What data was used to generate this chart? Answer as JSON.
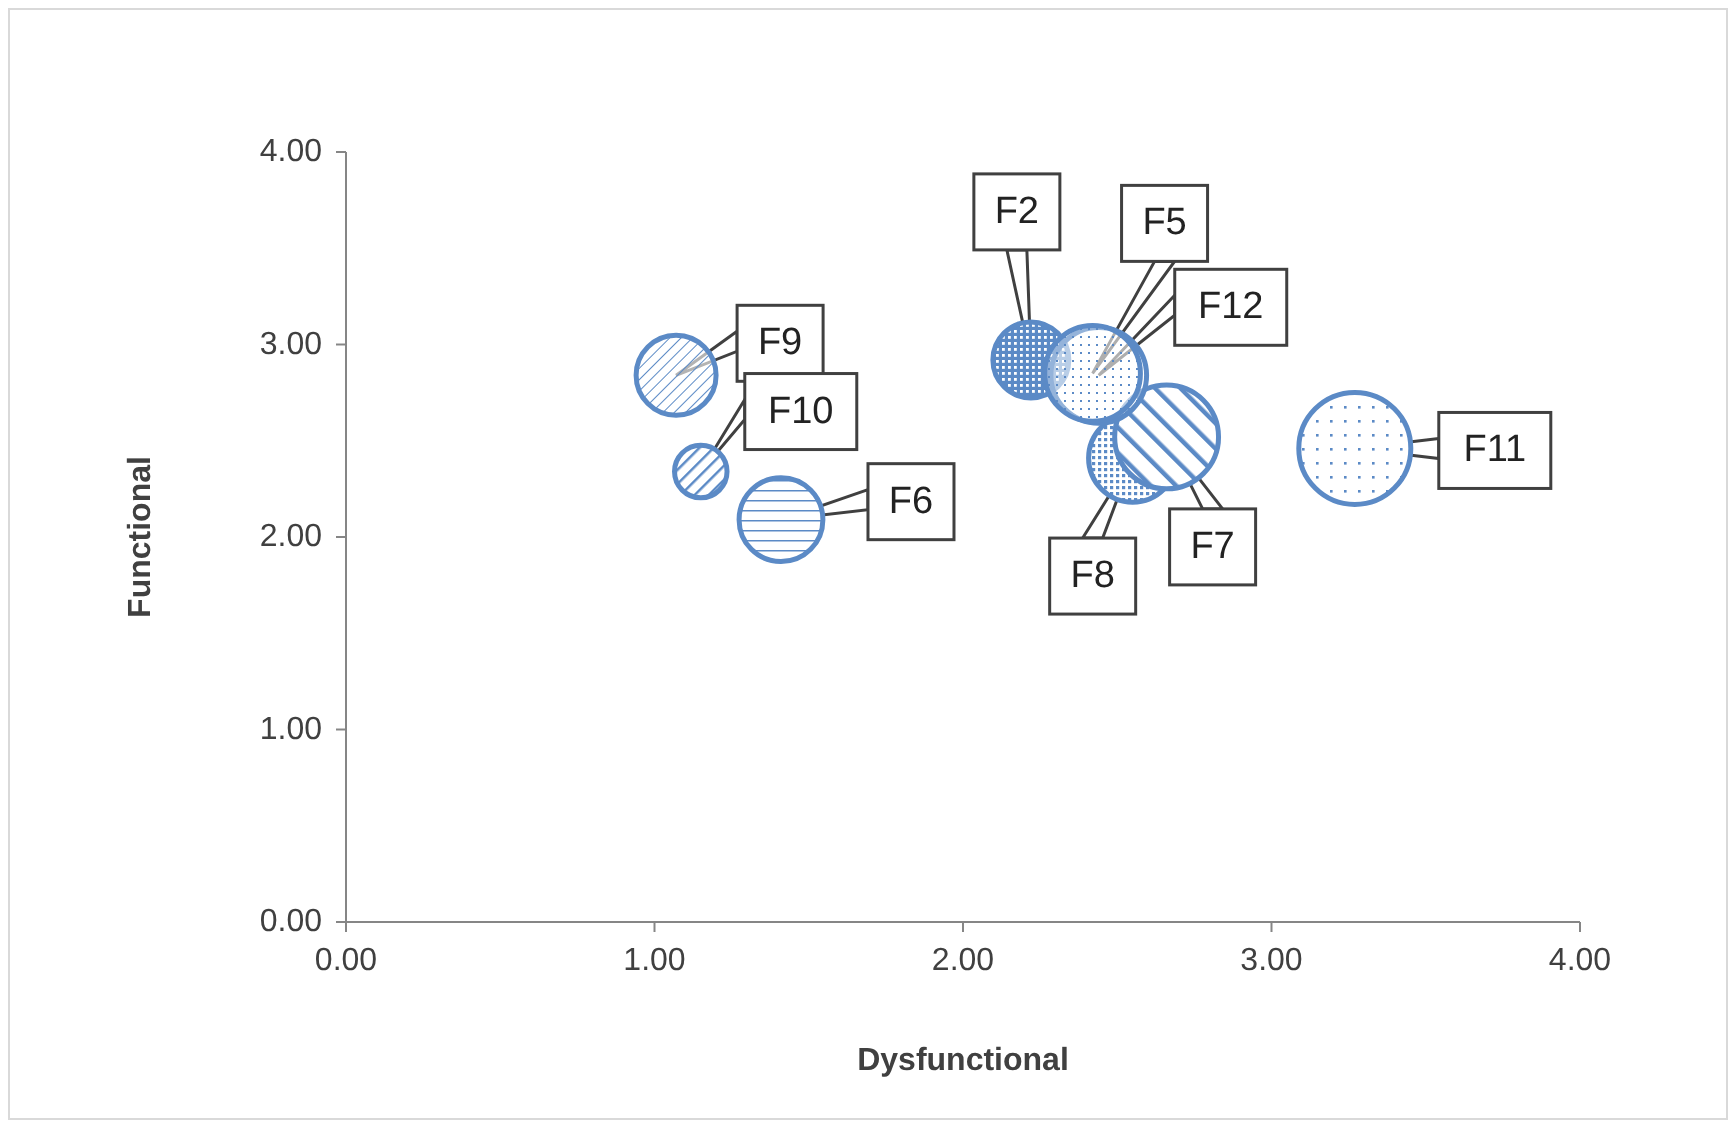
{
  "chart_data": {
    "type": "bubble",
    "xlabel": "Dysfunctional",
    "ylabel": "Functional",
    "xlim": [
      0,
      4
    ],
    "ylim": [
      0,
      4
    ],
    "xticks": [
      {
        "value": 0,
        "label": "0.00"
      },
      {
        "value": 1,
        "label": "1.00"
      },
      {
        "value": 2,
        "label": "2.00"
      },
      {
        "value": 3,
        "label": "3.00"
      },
      {
        "value": 4,
        "label": "4.00"
      }
    ],
    "yticks": [
      {
        "value": 0,
        "label": "0.00"
      },
      {
        "value": 1,
        "label": "1.00"
      },
      {
        "value": 2,
        "label": "2.00"
      },
      {
        "value": 3,
        "label": "3.00"
      },
      {
        "value": 4,
        "label": "4.00"
      }
    ],
    "grid": false,
    "legend": false,
    "series": [
      {
        "name": "F9",
        "color": "#5b8ac6",
        "x": [
          1.07
        ],
        "values": [
          2.84
        ],
        "sizes": [
          0.51
        ]
      },
      {
        "name": "F10",
        "color": "#5b8ac6",
        "x": [
          1.15
        ],
        "values": [
          2.34
        ],
        "sizes": [
          0.22
        ]
      },
      {
        "name": "F6",
        "color": "#5b8ac6",
        "x": [
          1.41
        ],
        "values": [
          2.09
        ],
        "sizes": [
          0.56
        ]
      },
      {
        "name": "F2",
        "color": "#5b8ac6",
        "x": [
          2.22
        ],
        "values": [
          2.92
        ],
        "sizes": [
          0.46
        ]
      },
      {
        "name": "F8",
        "color": "#5b8ac6",
        "x": [
          2.55
        ],
        "values": [
          2.41
        ],
        "sizes": [
          0.62
        ]
      },
      {
        "name": "F7",
        "color": "#5b8ac6",
        "x": [
          2.66
        ],
        "values": [
          2.52
        ],
        "sizes": [
          0.86
        ]
      },
      {
        "name": "F12",
        "color": "#5b8ac6",
        "x": [
          2.44
        ],
        "values": [
          2.84
        ],
        "sizes": [
          0.73
        ]
      },
      {
        "name": "F5",
        "color": "#5b8ac6",
        "x": [
          2.42
        ],
        "values": [
          2.85
        ],
        "sizes": [
          0.73
        ]
      },
      {
        "name": "F11",
        "color": "#5b8ac6",
        "x": [
          3.27
        ],
        "values": [
          2.46
        ],
        "sizes": [
          1
        ]
      }
    ]
  }
}
